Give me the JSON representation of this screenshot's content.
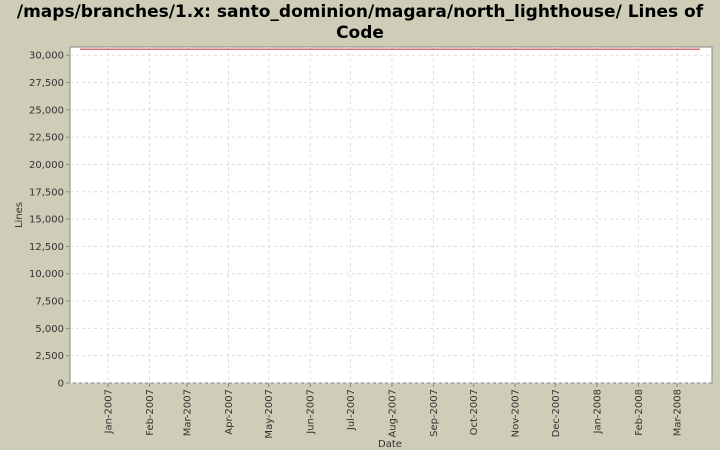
{
  "chart_data": {
    "type": "line",
    "title": "/maps/branches/1.x: santo_dominion/magara/north_lighthouse/ Lines of Code",
    "x_label": "Date",
    "y_label": "Lines",
    "series": [
      {
        "name": "Lines",
        "color": "#c04040",
        "x": [
          -21,
          442
        ],
        "values": [
          30550,
          30550
        ]
      }
    ],
    "xlim": [
      -28.4,
      451
    ],
    "ylim": [
      0,
      30750
    ],
    "xticks": [
      {
        "value": 0,
        "label": "Jan-2007"
      },
      {
        "value": 31,
        "label": "Feb-2007"
      },
      {
        "value": 59,
        "label": "Mar-2007"
      },
      {
        "value": 90,
        "label": "Apr-2007"
      },
      {
        "value": 120,
        "label": "May-2007"
      },
      {
        "value": 151,
        "label": "Jun-2007"
      },
      {
        "value": 181,
        "label": "Jul-2007"
      },
      {
        "value": 212,
        "label": "Aug-2007"
      },
      {
        "value": 243,
        "label": "Sep-2007"
      },
      {
        "value": 273,
        "label": "Oct-2007"
      },
      {
        "value": 304,
        "label": "Nov-2007"
      },
      {
        "value": 334,
        "label": "Dec-2007"
      },
      {
        "value": 365,
        "label": "Jan-2008"
      },
      {
        "value": 396,
        "label": "Feb-2008"
      },
      {
        "value": 425,
        "label": "Mar-2008"
      }
    ],
    "yticks": [
      0,
      {
        "value": 2500,
        "label": "2,500"
      },
      {
        "value": 5000,
        "label": "5,000"
      },
      {
        "value": 7500,
        "label": "7,500"
      },
      {
        "value": 10000,
        "label": "10,000"
      },
      {
        "value": 12500,
        "label": "12,500"
      },
      {
        "value": 15000,
        "label": "15,000"
      },
      {
        "value": 17500,
        "label": "17,500"
      },
      {
        "value": 20000,
        "label": "20,000"
      },
      {
        "value": 22500,
        "label": "22,500"
      },
      {
        "value": 25000,
        "label": "25,000"
      },
      {
        "value": 27500,
        "label": "27,500"
      },
      {
        "value": 30000,
        "label": "30,000"
      }
    ],
    "grid": true
  }
}
